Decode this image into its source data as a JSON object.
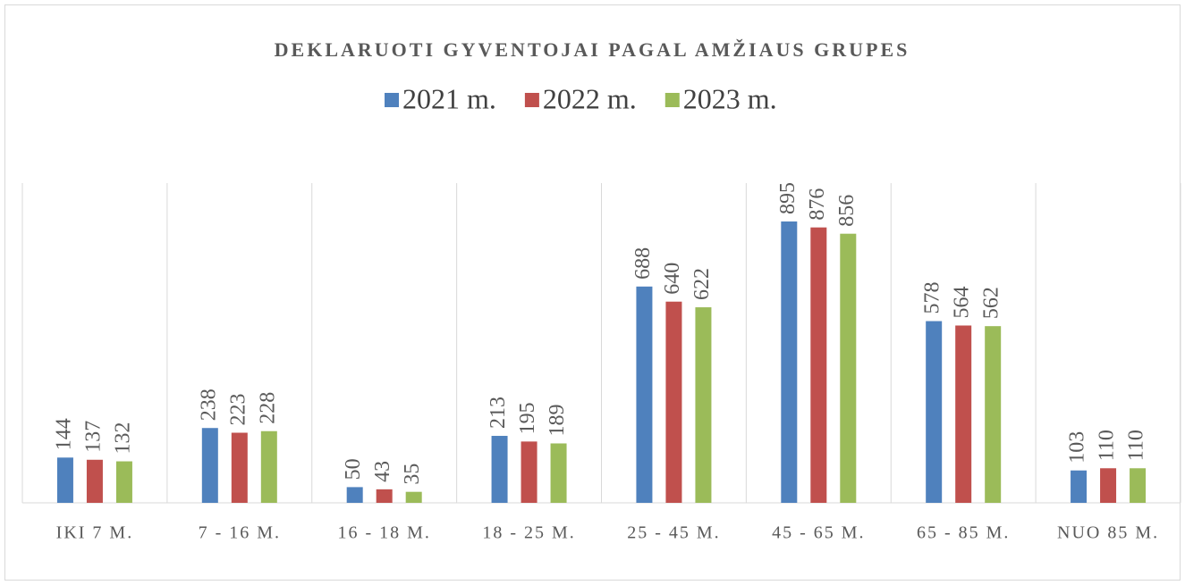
{
  "chart_data": {
    "type": "bar",
    "title": "DEKLARUOTI GYVENTOJAI PAGAL AMŽIAUS GRUPES",
    "categories": [
      "IKI 7 M.",
      "7 - 16 M.",
      "16 - 18 M.",
      "18 - 25 M.",
      "25 - 45 M.",
      "45 - 65 M.",
      "65 - 85 M.",
      "NUO 85 M."
    ],
    "series": [
      {
        "name": "2021 m.",
        "color": "#4f81bd",
        "values": [
          144,
          238,
          50,
          213,
          688,
          895,
          578,
          103
        ]
      },
      {
        "name": "2022 m.",
        "color": "#c0504d",
        "values": [
          137,
          223,
          43,
          195,
          640,
          876,
          564,
          110
        ]
      },
      {
        "name": "2023 m.",
        "color": "#9bbb59",
        "values": [
          132,
          228,
          35,
          189,
          622,
          856,
          562,
          110
        ]
      }
    ],
    "ylim": [
      0,
      1000
    ]
  }
}
